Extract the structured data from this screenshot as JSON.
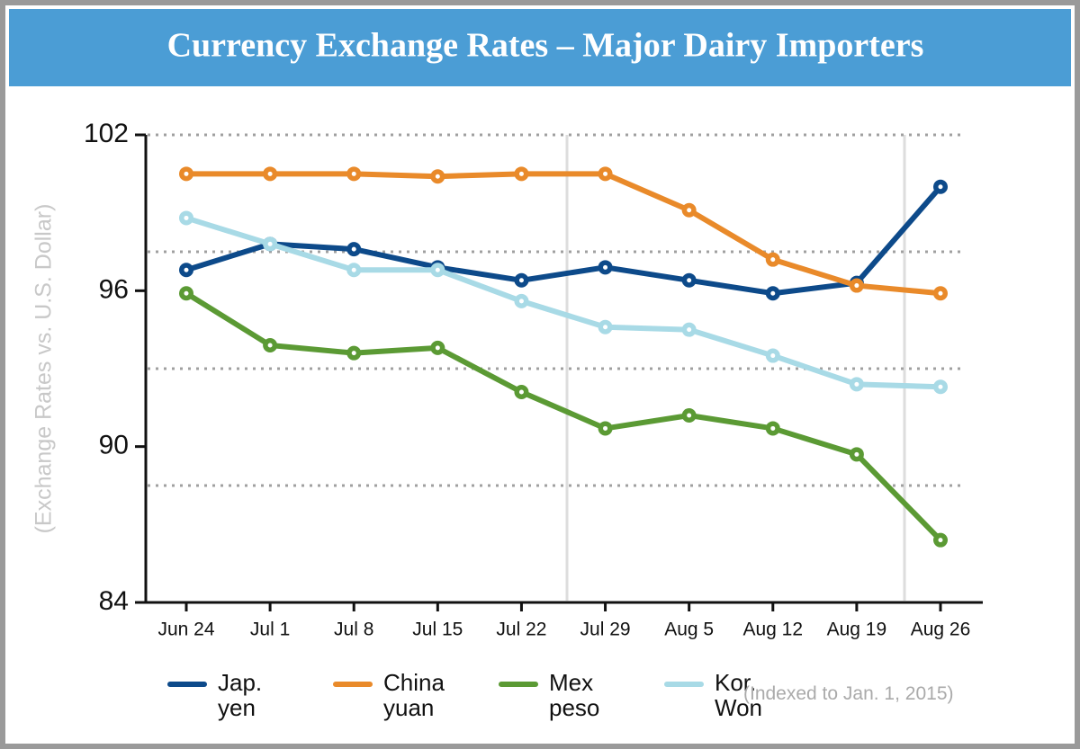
{
  "chart_data": {
    "type": "line",
    "title": "Currency Exchange Rates – Major Dairy Importers",
    "ylabel": "(Exchange Rates vs. U.S. Dollar)",
    "note": "(Indexed to Jan. 1, 2015)",
    "categories": [
      "Jun 24",
      "Jul 1",
      "Jul 8",
      "Jul 15",
      "Jul 22",
      "Jul 29",
      "Aug 5",
      "Aug 12",
      "Aug 19",
      "Aug 26"
    ],
    "ylim": [
      84,
      102
    ],
    "yticks": [
      84,
      90,
      96,
      102
    ],
    "grid_lines": [
      102,
      97.5,
      93,
      88.5
    ],
    "series": [
      {
        "name": "Jap. yen",
        "color": "#0d4a8a",
        "values": [
          96.8,
          97.8,
          97.6,
          96.9,
          96.4,
          96.9,
          96.4,
          95.9,
          96.3,
          100.0
        ]
      },
      {
        "name": "China yuan",
        "color": "#e98a2a",
        "values": [
          100.5,
          100.5,
          100.5,
          100.4,
          100.5,
          100.5,
          99.1,
          97.2,
          96.2,
          95.9
        ]
      },
      {
        "name": "Mex peso",
        "color": "#5b9a34",
        "values": [
          95.9,
          93.9,
          93.6,
          93.8,
          92.1,
          90.7,
          91.2,
          90.7,
          89.7,
          86.4
        ]
      },
      {
        "name": "Kor. Won",
        "color": "#a8dae6",
        "values": [
          98.8,
          97.8,
          96.8,
          96.8,
          95.6,
          94.6,
          94.5,
          93.5,
          92.4,
          92.3
        ]
      }
    ]
  }
}
